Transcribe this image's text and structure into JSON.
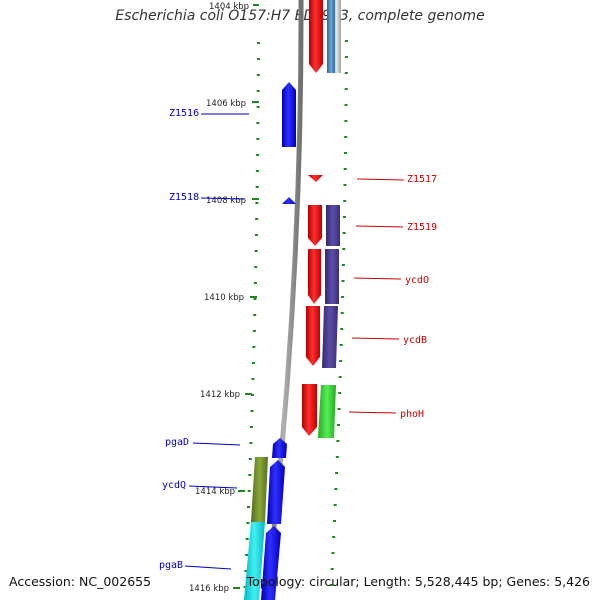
{
  "title": "Escherichia coli O157:H7 EDL933, complete genome",
  "footer": {
    "accession": "Accession: NC_002655",
    "summary": "Topology: circular; Length: 5,528,445 bp; Genes: 5,426"
  },
  "ruler": {
    "ticks": [
      "1404 kbp",
      "1406 kbp",
      "1408 kbp",
      "1410 kbp",
      "1412 kbp",
      "1414 kbp",
      "1416 kbp"
    ]
  },
  "genes": {
    "minus": [
      "Z1516",
      "Z1518",
      "pgaD",
      "ycdQ",
      "pgaB"
    ],
    "plus": [
      "Z1517",
      "Z1519",
      "ycdO",
      "ycdB",
      "phoH"
    ]
  },
  "colors": {
    "backbone": "#8a8a8a",
    "forward_strand": "#ff0000",
    "reverse_strand": "#0000ff",
    "cog_purple": "#4b3f8f",
    "cog_green": "#33cc33",
    "cog_olive": "#6b8e23",
    "cog_cyan": "#11d4d4",
    "cog_steelblue": "#4682b4",
    "tick_marks": "#1a8a1a"
  }
}
